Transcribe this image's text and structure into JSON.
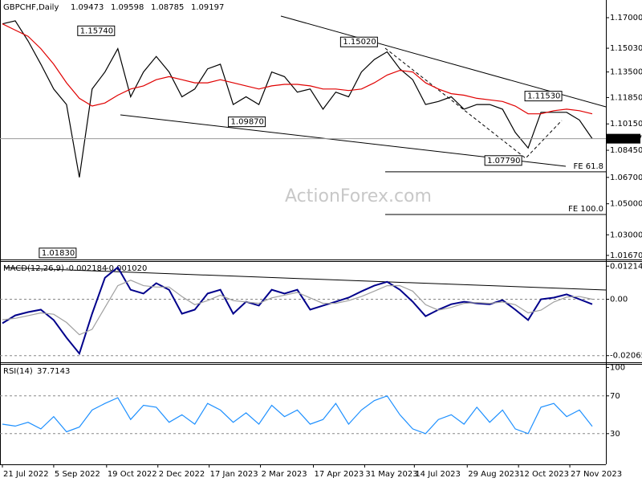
{
  "chart_data": [
    {
      "type": "line",
      "title": "GBPCHF,Daily",
      "ohlc": [
        {
          "value": 1.09473,
          "label": "1.09473"
        },
        {
          "value": 1.09598,
          "label": "1.09598"
        },
        {
          "value": 1.08785,
          "label": "1.08785"
        },
        {
          "value": 1.09197,
          "label": "1.09197"
        }
      ],
      "watermark": "ActionForex.com",
      "x": [
        0,
        8,
        16,
        24,
        32,
        40,
        48,
        56,
        64,
        72,
        80,
        88,
        96,
        104,
        112,
        120,
        128,
        136,
        144,
        152,
        160,
        168,
        176,
        184,
        192,
        200,
        208,
        216,
        224,
        232,
        240,
        248,
        256,
        264,
        272,
        280,
        288,
        296,
        304,
        312,
        320,
        328,
        336,
        344,
        352,
        360,
        368
      ],
      "xlim": [
        -1.5,
        376.5
      ],
      "series": [
        {
          "color": "#000000",
          "values": [
            1.166,
            1.168,
            1.155,
            1.14,
            1.124,
            1.114,
            1.067,
            1.124,
            1.135,
            1.15,
            1.119,
            1.135,
            1.145,
            1.135,
            1.119,
            1.124,
            1.137,
            1.14,
            1.114,
            1.119,
            1.114,
            1.135,
            1.132,
            1.122,
            1.124,
            1.111,
            1.122,
            1.119,
            1.135,
            1.143,
            1.148,
            1.137,
            1.13,
            1.114,
            1.116,
            1.119,
            1.111,
            1.114,
            1.114,
            1.111,
            1.096,
            1.086,
            1.109,
            1.109,
            1.109,
            1.104,
            1.09197
          ]
        },
        {
          "color": "#e00000",
          "values": [
            1.166,
            1.162,
            1.158,
            1.15,
            1.14,
            1.128,
            1.118,
            1.113,
            1.115,
            1.12,
            1.124,
            1.126,
            1.13,
            1.132,
            1.13,
            1.128,
            1.128,
            1.13,
            1.128,
            1.126,
            1.124,
            1.126,
            1.127,
            1.127,
            1.126,
            1.124,
            1.124,
            1.123,
            1.124,
            1.128,
            1.133,
            1.136,
            1.135,
            1.128,
            1.124,
            1.121,
            1.12,
            1.118,
            1.117,
            1.116,
            1.113,
            1.108,
            1.108,
            1.11,
            1.111,
            1.11,
            1.108
          ]
        }
      ],
      "ylim": [
        1.0146,
        1.1814
      ],
      "yticks": [
        {
          "value": 1.17,
          "label": "1.17000"
        },
        {
          "value": 1.1503,
          "label": "1.15030"
        },
        {
          "value": 1.135,
          "label": "1.13500"
        },
        {
          "value": 1.1185,
          "label": "1.11850"
        },
        {
          "value": 1.1015,
          "label": "1.10150"
        },
        {
          "value": 1.0845,
          "label": "1.08450"
        },
        {
          "value": 1.067,
          "label": "1.06700"
        },
        {
          "value": 1.05,
          "label": "1.05000"
        },
        {
          "value": 1.03,
          "label": "1.03000"
        },
        {
          "value": 1.0167,
          "label": "1.01670"
        }
      ],
      "last_price": {
        "value": 1.09197,
        "label": "1.09197"
      },
      "annotations": [
        {
          "x": 72,
          "value": 1.1574,
          "label": "1.15740"
        },
        {
          "x": 236,
          "value": 1.1502,
          "label": "1.15020"
        },
        {
          "x": 166,
          "value": 1.0987,
          "label": "1.09870"
        },
        {
          "x": 326,
          "value": 1.0779,
          "label": "1.07790"
        },
        {
          "x": 351,
          "value": 1.1153,
          "label": "1.11530"
        },
        {
          "x": 48,
          "value": 1.0183,
          "label": "1.01830"
        }
      ],
      "levels": [
        {
          "label": "FE 61.8",
          "value": 1.0706
        },
        {
          "label": "FE 100.0",
          "value": 1.0431
        }
      ]
    },
    {
      "type": "line",
      "title": "MACD(12,26,9)",
      "indicator_values": [
        {
          "value": -0.002184,
          "label": "-0.002184"
        },
        {
          "value": -0.00102,
          "label": "-0.001020"
        }
      ],
      "x": [
        0,
        8,
        16,
        24,
        32,
        40,
        48,
        56,
        64,
        72,
        80,
        88,
        96,
        104,
        112,
        120,
        128,
        136,
        144,
        152,
        160,
        168,
        176,
        184,
        192,
        200,
        208,
        216,
        224,
        232,
        240,
        248,
        256,
        264,
        272,
        280,
        288,
        296,
        304,
        312,
        320,
        328,
        336,
        344,
        352,
        360,
        368
      ],
      "xlim": [
        -1.5,
        376.5
      ],
      "series": [
        {
          "color": "#00008b",
          "values": [
            -0.0088,
            -0.0059,
            -0.0047,
            -0.0038,
            -0.0076,
            -0.0141,
            -0.0199,
            -0.0053,
            0.0079,
            0.0117,
            0.0035,
            0.0021,
            0.0059,
            0.0035,
            -0.0053,
            -0.0038,
            0.0021,
            0.0035,
            -0.0053,
            -0.0009,
            -0.0023,
            0.0035,
            0.0021,
            0.0035,
            -0.0038,
            -0.0023,
            -0.0009,
            0.0006,
            0.0029,
            0.005,
            0.0064,
            0.0035,
            -0.0009,
            -0.0062,
            -0.0038,
            -0.0018,
            -0.0009,
            -0.0015,
            -0.0018,
            -0.0003,
            -0.0038,
            -0.0076,
            0,
            0.0006,
            0.0018,
            0,
            -0.0018
          ]
        },
        {
          "color": "#a0a0a0",
          "values": [
            -0.0075,
            -0.007,
            -0.006,
            -0.005,
            -0.0055,
            -0.0085,
            -0.013,
            -0.011,
            -0.003,
            0.005,
            0.007,
            0.005,
            0.0045,
            0.0045,
            0.001,
            -0.002,
            -0.0005,
            0.0015,
            -0.0005,
            -0.001,
            -0.0015,
            0.0005,
            0.0015,
            0.0025,
            0.0005,
            -0.0015,
            -0.0015,
            -0.0005,
            0.001,
            0.003,
            0.005,
            0.005,
            0.003,
            -0.002,
            -0.004,
            -0.003,
            -0.0015,
            -0.0012,
            -0.0015,
            -0.001,
            -0.002,
            -0.005,
            -0.004,
            -0.001,
            0.0008,
            0.001,
            0
          ]
        }
      ],
      "ylim": [
        -0.0228,
        0.0137
      ],
      "yticks": [
        0.012145,
        {
          "value": 0,
          "label": "0.00"
        },
        -0.020656
      ]
    },
    {
      "type": "line",
      "title": "RSI(14)",
      "indicator_values": [
        37.7143
      ],
      "x": [
        0,
        8,
        16,
        24,
        32,
        40,
        48,
        56,
        64,
        72,
        80,
        88,
        96,
        104,
        112,
        120,
        128,
        136,
        144,
        152,
        160,
        168,
        176,
        184,
        192,
        200,
        208,
        216,
        224,
        232,
        240,
        248,
        256,
        264,
        272,
        280,
        288,
        296,
        304,
        312,
        320,
        328,
        336,
        344,
        352,
        360,
        368
      ],
      "xlim": [
        -1.5,
        376.5
      ],
      "series": [
        {
          "color": "#1e90ff",
          "values": [
            40,
            38,
            42,
            35,
            48,
            32,
            37,
            55,
            62,
            68,
            45,
            60,
            58,
            42,
            50,
            40,
            62,
            55,
            42,
            52,
            40,
            60,
            48,
            55,
            40,
            45,
            62,
            40,
            55,
            65,
            70,
            50,
            35,
            30,
            45,
            50,
            40,
            58,
            42,
            55,
            35,
            30,
            58,
            62,
            48,
            55,
            37.7143
          ]
        }
      ],
      "ylim": [
        -2.5,
        103
      ],
      "yticks": [
        100,
        70,
        30
      ],
      "xticks": [
        {
          "value": 0,
          "label": "21 Jul 2022"
        },
        {
          "value": 32,
          "label": "5 Sep 2022"
        },
        {
          "value": 65,
          "label": "19 Oct 2022"
        },
        {
          "value": 97,
          "label": "2 Dec 2022"
        },
        {
          "value": 129,
          "label": "17 Jan 2023"
        },
        {
          "value": 161,
          "label": "2 Mar 2023"
        },
        {
          "value": 194,
          "label": "17 Apr 2023"
        },
        {
          "value": 226,
          "label": "31 May 2023"
        },
        {
          "value": 257,
          "label": "14 Jul 2023"
        },
        {
          "value": 290,
          "label": "29 Aug 2023"
        },
        {
          "value": 322,
          "label": "12 Oct 2023"
        },
        {
          "value": 354,
          "label": "27 Nov 2023"
        }
      ]
    }
  ]
}
